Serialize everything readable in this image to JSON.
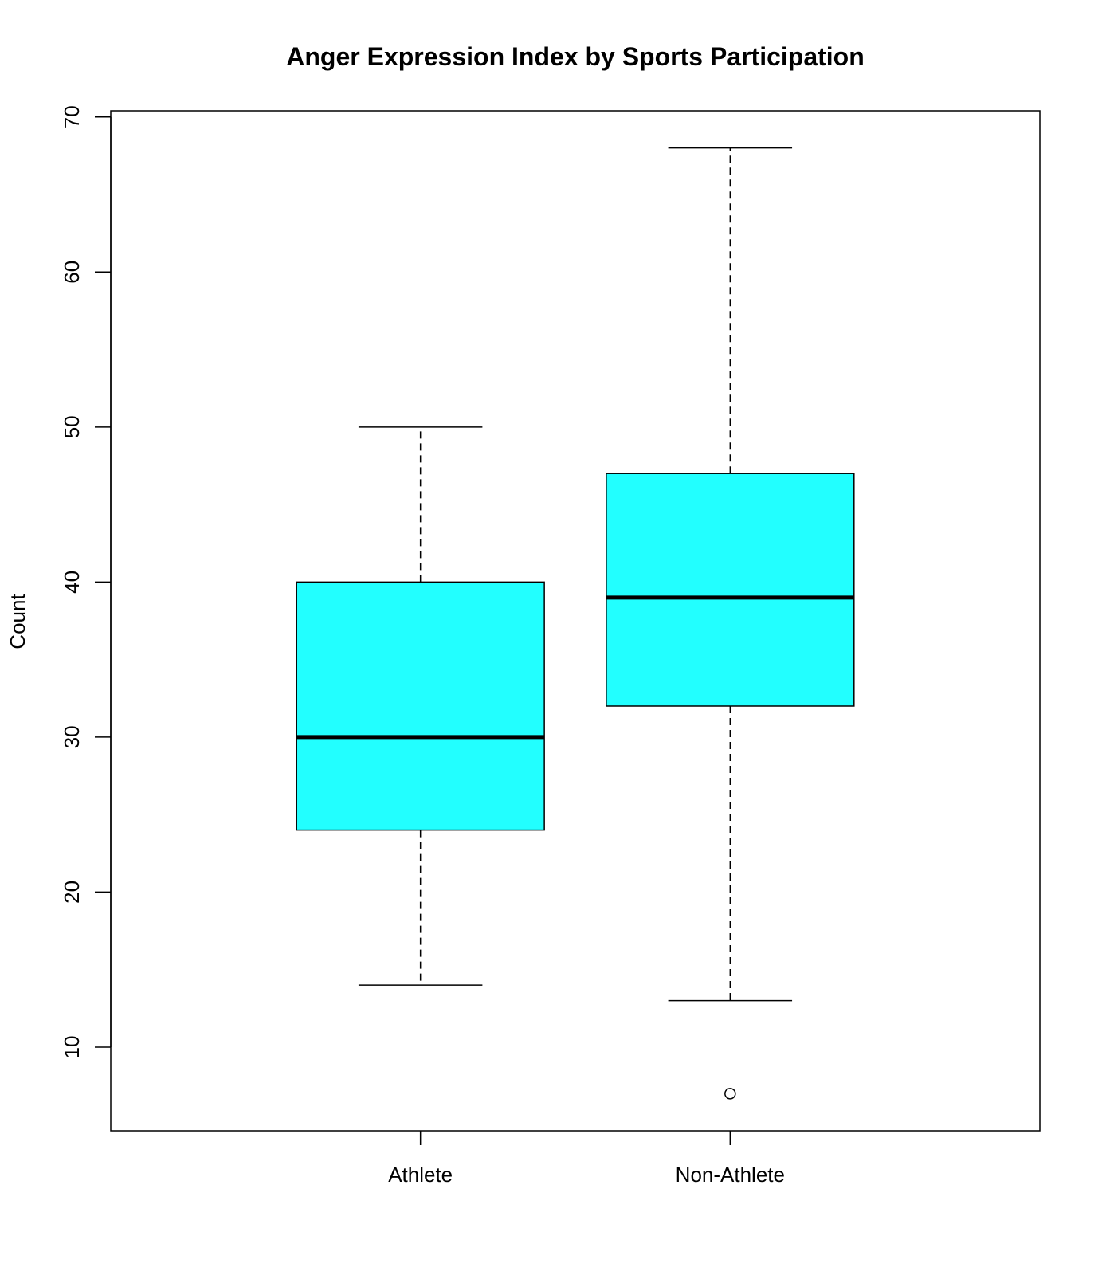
{
  "chart_data": {
    "type": "boxplot",
    "title": "Anger Expression Index by Sports Participation",
    "xlabel": "",
    "ylabel": "Count",
    "ylim": [
      4.6,
      70.4
    ],
    "yticks": [
      10,
      20,
      30,
      40,
      50,
      60,
      70
    ],
    "categories": [
      "Athlete",
      "Non-Athlete"
    ],
    "boxes": [
      {
        "category": "Athlete",
        "whisker_low": 14,
        "q1": 24,
        "median": 30,
        "q3": 40,
        "whisker_high": 50,
        "outliers": []
      },
      {
        "category": "Non-Athlete",
        "whisker_low": 13,
        "q1": 32,
        "median": 39,
        "q3": 47,
        "whisker_high": 68,
        "outliers": [
          7
        ]
      }
    ],
    "box_color": "#22ffff",
    "grid": false
  }
}
